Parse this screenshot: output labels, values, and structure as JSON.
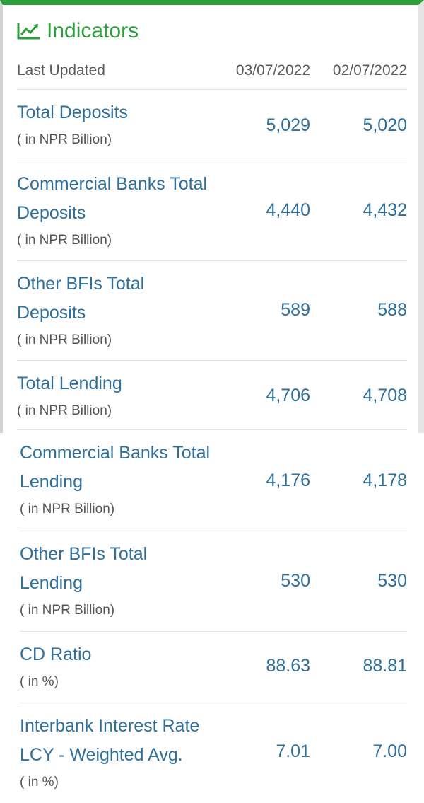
{
  "title": "Indicators",
  "header": {
    "label": "Last Updated",
    "date1": "03/07/2022",
    "date2": "02/07/2022"
  },
  "rows": [
    {
      "label_line1": "Total Deposits",
      "label_line2": "",
      "unit": "( in NPR Billion)",
      "value1": "5,029",
      "value2": "5,020"
    },
    {
      "label_line1": "Commercial Banks Total",
      "label_line2": "Deposits",
      "unit": "( in NPR Billion)",
      "value1": "4,440",
      "value2": "4,432"
    },
    {
      "label_line1": "Other BFIs Total",
      "label_line2": "Deposits",
      "unit": "( in NPR Billion)",
      "value1": "589",
      "value2": "588"
    },
    {
      "label_line1": "Total Lending",
      "label_line2": "",
      "unit": "( in NPR Billion)",
      "value1": "4,706",
      "value2": "4,708"
    },
    {
      "label_line1": "Commercial Banks Total",
      "label_line2": "Lending",
      "unit": "( in NPR Billion)",
      "value1": "4,176",
      "value2": "4,178"
    },
    {
      "label_line1": "Other BFIs Total",
      "label_line2": "Lending",
      "unit": "( in NPR Billion)",
      "value1": "530",
      "value2": "530"
    },
    {
      "label_line1": "CD Ratio",
      "label_line2": "",
      "unit": "( in %)",
      "value1": "88.63",
      "value2": "88.81"
    },
    {
      "label_line1": "Interbank Interest Rate",
      "label_line2": "LCY - Weighted Avg.",
      "unit": "( in %)",
      "value1": "7.01",
      "value2": "7.00"
    }
  ],
  "colors": {
    "accent": "#2c9e3a",
    "label": "#2e6f9c",
    "muted": "#5b5b5b"
  }
}
